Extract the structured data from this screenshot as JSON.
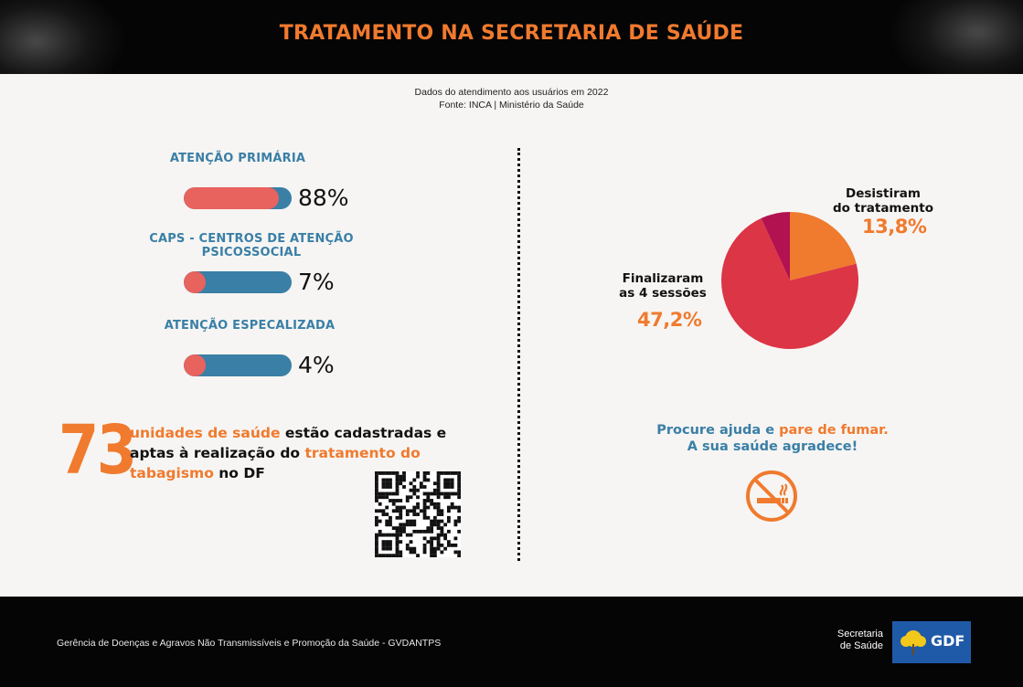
{
  "header": {
    "title": "TRATAMENTO NA SECRETARIA DE SAÚDE"
  },
  "subtitle": {
    "line1": "Dados do atendimento aos usuários em 2022",
    "line2": "Fonte: INCA | Ministério da Saúde"
  },
  "stats": [
    {
      "label": "ATENÇÃO PRIMÁRIA",
      "value": 88,
      "pct_label": "88%"
    },
    {
      "label": "CAPS - CENTROS DE ATENÇÃO PSICOSSOCIAL",
      "value": 7,
      "pct_label": "7%"
    },
    {
      "label": "ATENÇÃO ESPECALIZADA",
      "value": 4,
      "pct_label": "4%"
    }
  ],
  "units": {
    "number": "73",
    "part1": "unidades de saúde",
    "part2": " estão cadastradas e aptas à realização do ",
    "part3": "tratamento do tabagismo",
    "part4": " no DF"
  },
  "chart_data": {
    "type": "pie",
    "slices": [
      {
        "label": "Desistiram do tratamento",
        "label_line1": "Desistiram",
        "label_line2": "do tratamento",
        "value": 13.8,
        "value_label": "13,8%",
        "color": "#f07a2e"
      },
      {
        "label": "Finalizaram as 4 sessões",
        "label_line1": "Finalizaram",
        "label_line2": "as 4 sessões",
        "value": 47.2,
        "value_label": "47,2%",
        "color": "#dc3545"
      }
    ],
    "other_slices": [
      {
        "value": 4.5,
        "color": "#b2124f"
      }
    ]
  },
  "help": {
    "part1": "Procure ajuda e ",
    "part2": "pare de fumar.",
    "line2": "A sua saúde agradece!"
  },
  "footer": {
    "text": "Gerência de Doenças e Agravos Não Transmissíveis e Promoção da Saúde - GVDANTPS",
    "secretaria_line1": "Secretaria",
    "secretaria_line2": "de Saúde",
    "gdf": "GDF"
  },
  "colors": {
    "accent_orange": "#f07a2e",
    "accent_blue": "#3a7fa6",
    "bar_fill": "#e8625e"
  },
  "icons": {
    "no_smoking": "no-smoking-icon",
    "qr": "qr-code-icon",
    "logo": "gdf-flower-logo-icon"
  }
}
